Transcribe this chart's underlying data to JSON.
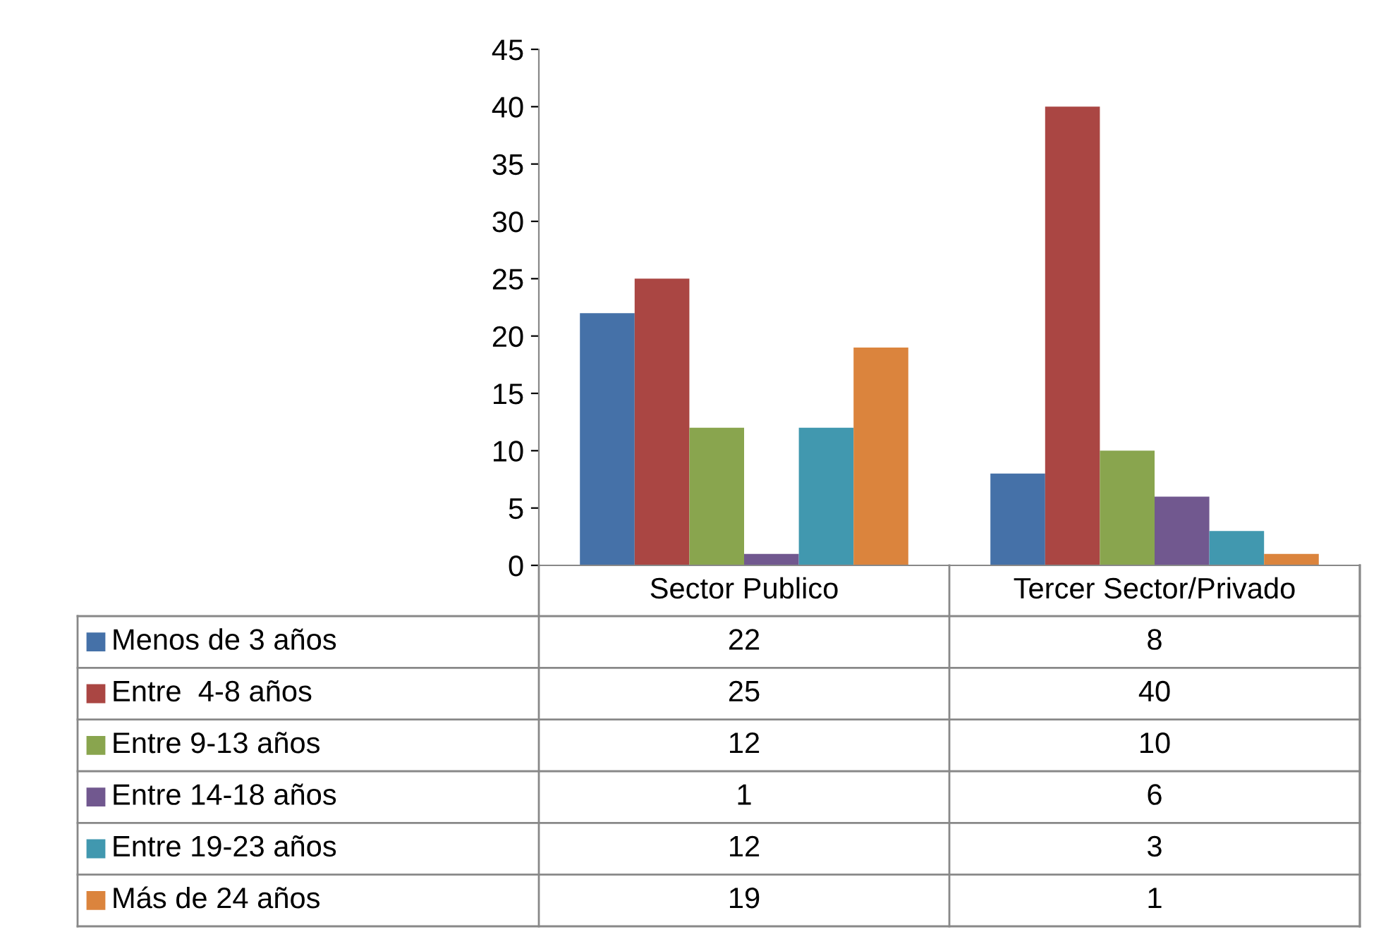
{
  "chart_data": {
    "type": "bar",
    "categories": [
      "Sector Publico",
      "Tercer Sector/Privado"
    ],
    "series": [
      {
        "name": "Menos de 3 años",
        "color": "#4571a8",
        "values": [
          22,
          8
        ]
      },
      {
        "name": "Entre  4-8 años",
        "color": "#aa4643",
        "values": [
          25,
          40
        ]
      },
      {
        "name": "Entre 9-13 años",
        "color": "#89a54e",
        "values": [
          12,
          10
        ]
      },
      {
        "name": "Entre 14-18 años",
        "color": "#71588f",
        "values": [
          1,
          6
        ]
      },
      {
        "name": "Entre 19-23 años",
        "color": "#4198af",
        "values": [
          12,
          3
        ]
      },
      {
        "name": "Más de 24 años",
        "color": "#db843d",
        "values": [
          19,
          1
        ]
      }
    ],
    "ylim": [
      0,
      45
    ],
    "yticks": [
      0,
      5,
      10,
      15,
      20,
      25,
      30,
      35,
      40,
      45
    ],
    "grid": false,
    "legend": "bottom",
    "data_labels": true
  }
}
